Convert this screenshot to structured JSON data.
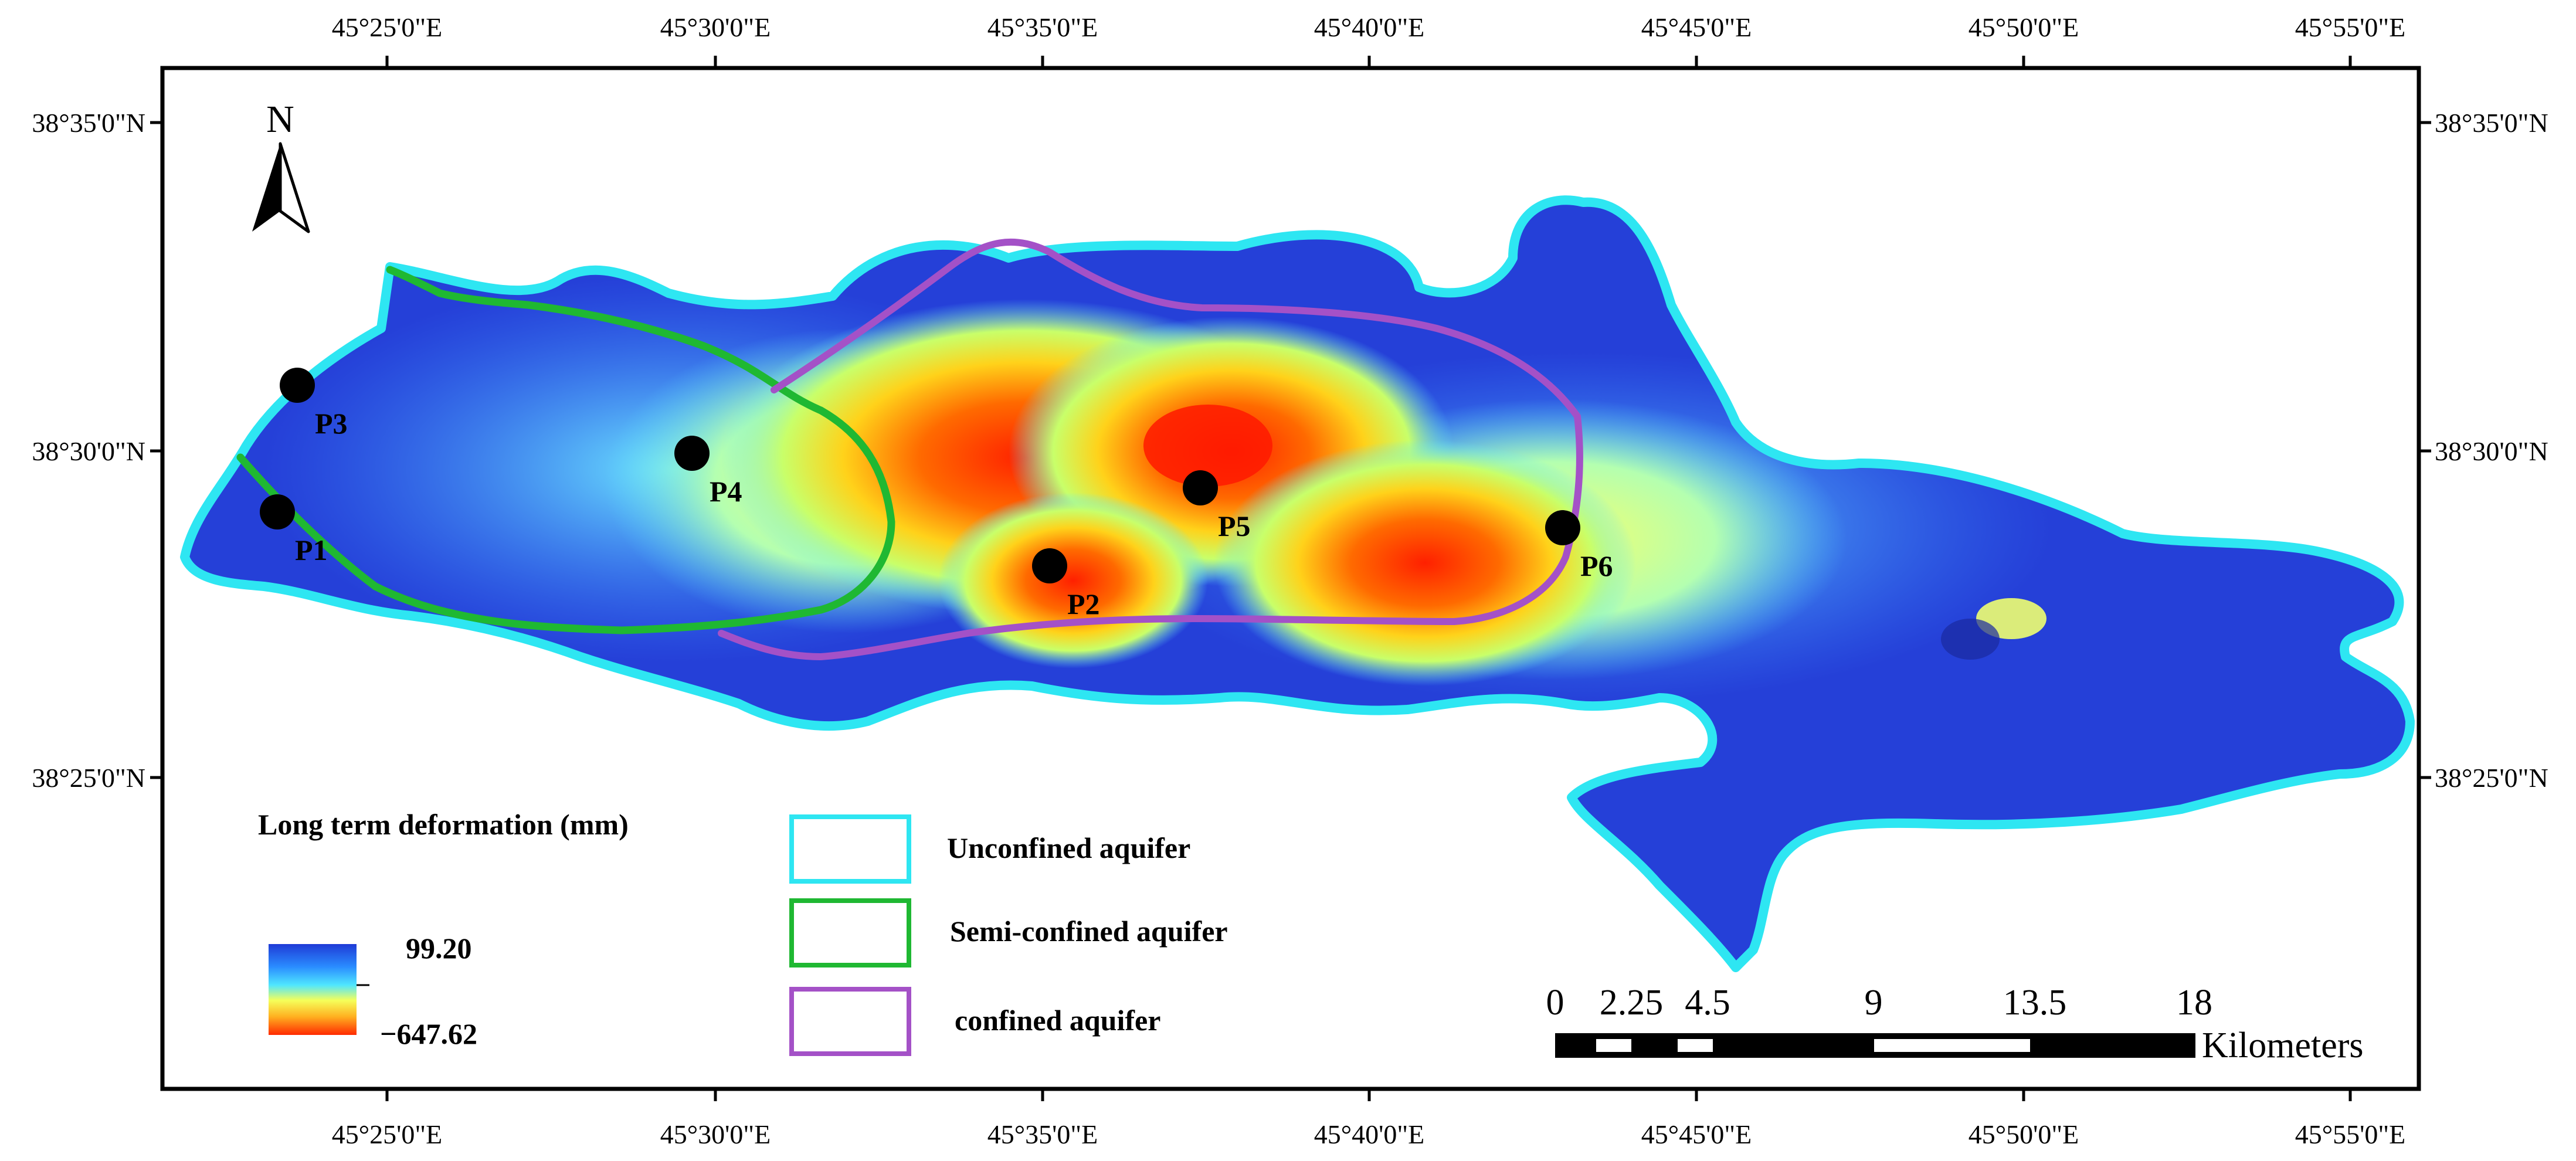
{
  "map": {
    "graticule": {
      "lon_labels": [
        "45°25'0\"E",
        "45°30'0\"E",
        "45°35'0\"E",
        "45°40'0\"E",
        "45°45'0\"E",
        "45°50'0\"E",
        "45°55'0\"E"
      ],
      "lat_labels": [
        "38°35'0\"N",
        "38°30'0\"N",
        "38°25'0\"N"
      ]
    },
    "north_arrow": {
      "label": "N"
    },
    "points": [
      {
        "label": "P1"
      },
      {
        "label": "P2"
      },
      {
        "label": "P3"
      },
      {
        "label": "P4"
      },
      {
        "label": "P5"
      },
      {
        "label": "P6"
      }
    ],
    "deformation_legend": {
      "title": "Long term deformation (mm)",
      "max_value": "99.20",
      "min_value": "−647.62",
      "ramp_colors": [
        "#1f3bd6",
        "#2a8cff",
        "#4fe6ff",
        "#f5ff5a",
        "#ffb020",
        "#ff2a00"
      ]
    },
    "aquifer_legend": [
      {
        "label": "Unconfined aquifer",
        "color": "#2ee6f2"
      },
      {
        "label": "Semi-confined aquifer",
        "color": "#1fb832"
      },
      {
        "label": "confined aquifer",
        "color": "#a451c7"
      }
    ],
    "scale_bar": {
      "ticks": [
        "0",
        "2.25",
        "4.5",
        "9",
        "13.5",
        "18"
      ],
      "unit": "Kilometers"
    }
  }
}
